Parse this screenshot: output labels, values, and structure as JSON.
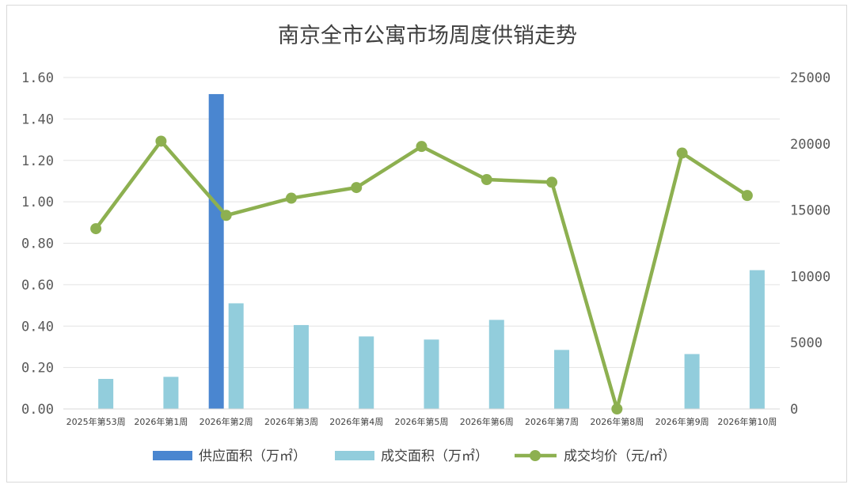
{
  "chart_data": {
    "type": "bar",
    "title": "南京全市公寓市场周度供销走势",
    "categories": [
      "2025年第53周",
      "2026年第1周",
      "2026年第2周",
      "2026年第3周",
      "2026年第4周",
      "2026年第5周",
      "2026年第6周",
      "2026年第7周",
      "2026年第8周",
      "2026年第9周",
      "2026年第10周"
    ],
    "y_left": {
      "min": 0,
      "max": 1.6,
      "step": 0.2,
      "ticks": [
        "0.00",
        "0.20",
        "0.40",
        "0.60",
        "0.80",
        "1.00",
        "1.20",
        "1.40",
        "1.60"
      ]
    },
    "y_right": {
      "min": 0,
      "max": 25000,
      "step": 5000,
      "ticks": [
        "0",
        "5000",
        "10000",
        "15000",
        "20000",
        "25000"
      ]
    },
    "grid": true,
    "legend_position": "bottom",
    "series": [
      {
        "name": "供应面积（万㎡）",
        "kind": "bar",
        "axis": "left",
        "color": "#4A86D0",
        "values": [
          0,
          0,
          1.52,
          0,
          0,
          0,
          0,
          0,
          0,
          0,
          0
        ]
      },
      {
        "name": "成交面积（万㎡）",
        "kind": "bar",
        "axis": "left",
        "color": "#92CDDC",
        "values": [
          0.145,
          0.155,
          0.51,
          0.405,
          0.35,
          0.335,
          0.43,
          0.285,
          0,
          0.265,
          0.67
        ]
      },
      {
        "name": "成交均价（元/㎡）",
        "kind": "line",
        "axis": "right",
        "color": "#8DB050",
        "values": [
          13600,
          20200,
          14600,
          15900,
          16700,
          19800,
          17300,
          17100,
          0,
          19300,
          16100
        ]
      }
    ]
  }
}
